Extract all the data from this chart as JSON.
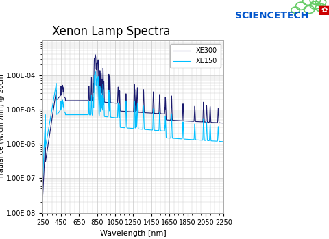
{
  "title": "Xenon Lamp Spectra",
  "xlabel": "Wavelength [nm]",
  "ylabel": "Irradiance (W/cm²/nm) @ 20cm",
  "xlim": [
    250,
    2250
  ],
  "ylim_log": [
    -8,
    -3
  ],
  "xticks": [
    250,
    450,
    650,
    850,
    1050,
    1250,
    1450,
    1650,
    1850,
    2050,
    2250
  ],
  "yticks_vals": [
    1e-08,
    1e-07,
    1e-06,
    1e-05,
    0.0001
  ],
  "yticks_labels": [
    "1.00E-08",
    "1.00E-07",
    "1.00E-06",
    "1.00E-05",
    "1.00E-04"
  ],
  "xe300_color": "#1a1a6e",
  "xe150_color": "#00bfff",
  "legend_labels": [
    "XE300",
    "XE150"
  ],
  "bg_color": "#ffffff",
  "grid_color": "#c8c8c8",
  "title_fontsize": 12,
  "label_fontsize": 8,
  "tick_fontsize": 7,
  "sciencetech_color": "#0055cc",
  "logo_circle_color": "#66cc66",
  "logo_leaf_color": "#cc0000"
}
